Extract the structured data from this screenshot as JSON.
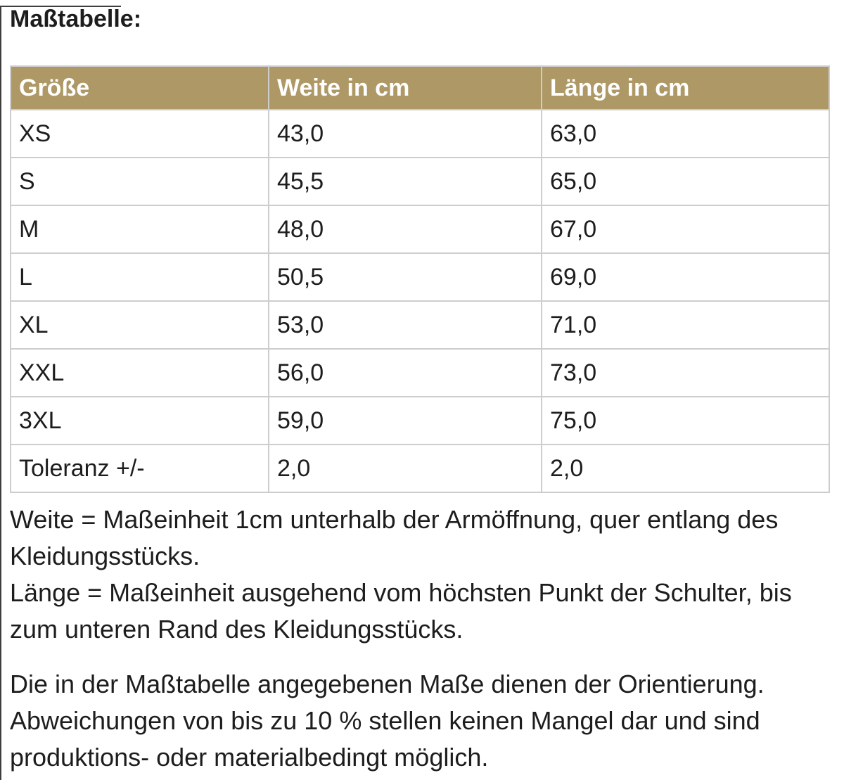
{
  "page": {
    "title": "Maßtabelle:"
  },
  "colors": {
    "header_bg": "#ae9966",
    "header_text": "#ffffff",
    "border": "#cdcdcd",
    "text": "#1d1d1d",
    "artifact": "#3f3f3f"
  },
  "table": {
    "headers": [
      "Größe",
      "Weite in cm",
      "Länge in cm"
    ],
    "rows": [
      [
        "XS",
        "43,0",
        "63,0"
      ],
      [
        "S",
        "45,5",
        "65,0"
      ],
      [
        "M",
        "48,0",
        "67,0"
      ],
      [
        "L",
        "50,5",
        "69,0"
      ],
      [
        "XL",
        "53,0",
        "71,0"
      ],
      [
        "XXL",
        "56,0",
        "73,0"
      ],
      [
        "3XL",
        "59,0",
        "75,0"
      ],
      [
        "Toleranz +/-",
        "2,0",
        "2,0"
      ]
    ]
  },
  "notes": {
    "weite": "Weite = Maßeinheit 1cm unterhalb der Armöffnung, quer entlang des Kleidungsstücks.",
    "laenge": "Länge = Maßeinheit ausgehend vom höchsten Punkt der Schulter, bis zum unteren Rand des Kleidungsstücks.",
    "disclaimer": "Die in der Maßtabelle angegebenen Maße dienen der Orientierung. Abweichungen von bis zu 10 % stellen keinen Mangel dar und sind produktions- oder materialbedingt möglich."
  }
}
